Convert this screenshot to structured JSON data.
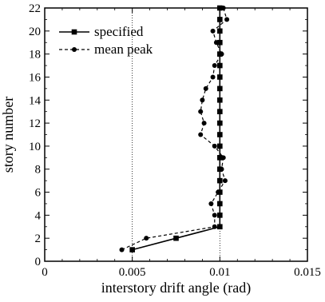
{
  "chart_data": {
    "type": "line",
    "xlabel": "interstory drift angle (rad)",
    "ylabel": "story number",
    "xlim": [
      0,
      0.015
    ],
    "ylim": [
      0,
      22
    ],
    "x_ticks": [
      "0",
      "0.005",
      "0.01",
      "0.015"
    ],
    "y_ticks": [
      "0",
      "2",
      "4",
      "6",
      "8",
      "10",
      "12",
      "14",
      "16",
      "18",
      "20",
      "22"
    ],
    "reference_lines_x": [
      0.005,
      0.01
    ],
    "legend_position": "top-left",
    "series": [
      {
        "name": "specified",
        "line": "solid",
        "marker": "square",
        "points": [
          [
            0.005,
            1
          ],
          [
            0.0075,
            2
          ],
          [
            0.01,
            3
          ],
          [
            0.01,
            4
          ],
          [
            0.01,
            5
          ],
          [
            0.01,
            6
          ],
          [
            0.01,
            7
          ],
          [
            0.01,
            8
          ],
          [
            0.01,
            9
          ],
          [
            0.01,
            10
          ],
          [
            0.01,
            11
          ],
          [
            0.01,
            12
          ],
          [
            0.01,
            13
          ],
          [
            0.01,
            14
          ],
          [
            0.01,
            15
          ],
          [
            0.01,
            16
          ],
          [
            0.01,
            17
          ],
          [
            0.01,
            18
          ],
          [
            0.01,
            19
          ],
          [
            0.01,
            20
          ],
          [
            0.01,
            21
          ],
          [
            0.01,
            22
          ]
        ]
      },
      {
        "name": "mean peak",
        "line": "dashed",
        "marker": "circle",
        "points": [
          [
            0.0044,
            1
          ],
          [
            0.0058,
            2
          ],
          [
            0.0097,
            3
          ],
          [
            0.0097,
            4
          ],
          [
            0.0095,
            5
          ],
          [
            0.0099,
            6
          ],
          [
            0.0103,
            7
          ],
          [
            0.0101,
            8
          ],
          [
            0.0102,
            9
          ],
          [
            0.0097,
            10
          ],
          [
            0.0089,
            11
          ],
          [
            0.0091,
            12
          ],
          [
            0.0089,
            13
          ],
          [
            0.009,
            14
          ],
          [
            0.0092,
            15
          ],
          [
            0.0096,
            16
          ],
          [
            0.0097,
            17
          ],
          [
            0.0101,
            18
          ],
          [
            0.0098,
            19
          ],
          [
            0.0096,
            20
          ],
          [
            0.0104,
            21
          ],
          [
            0.0102,
            22
          ]
        ]
      }
    ]
  }
}
